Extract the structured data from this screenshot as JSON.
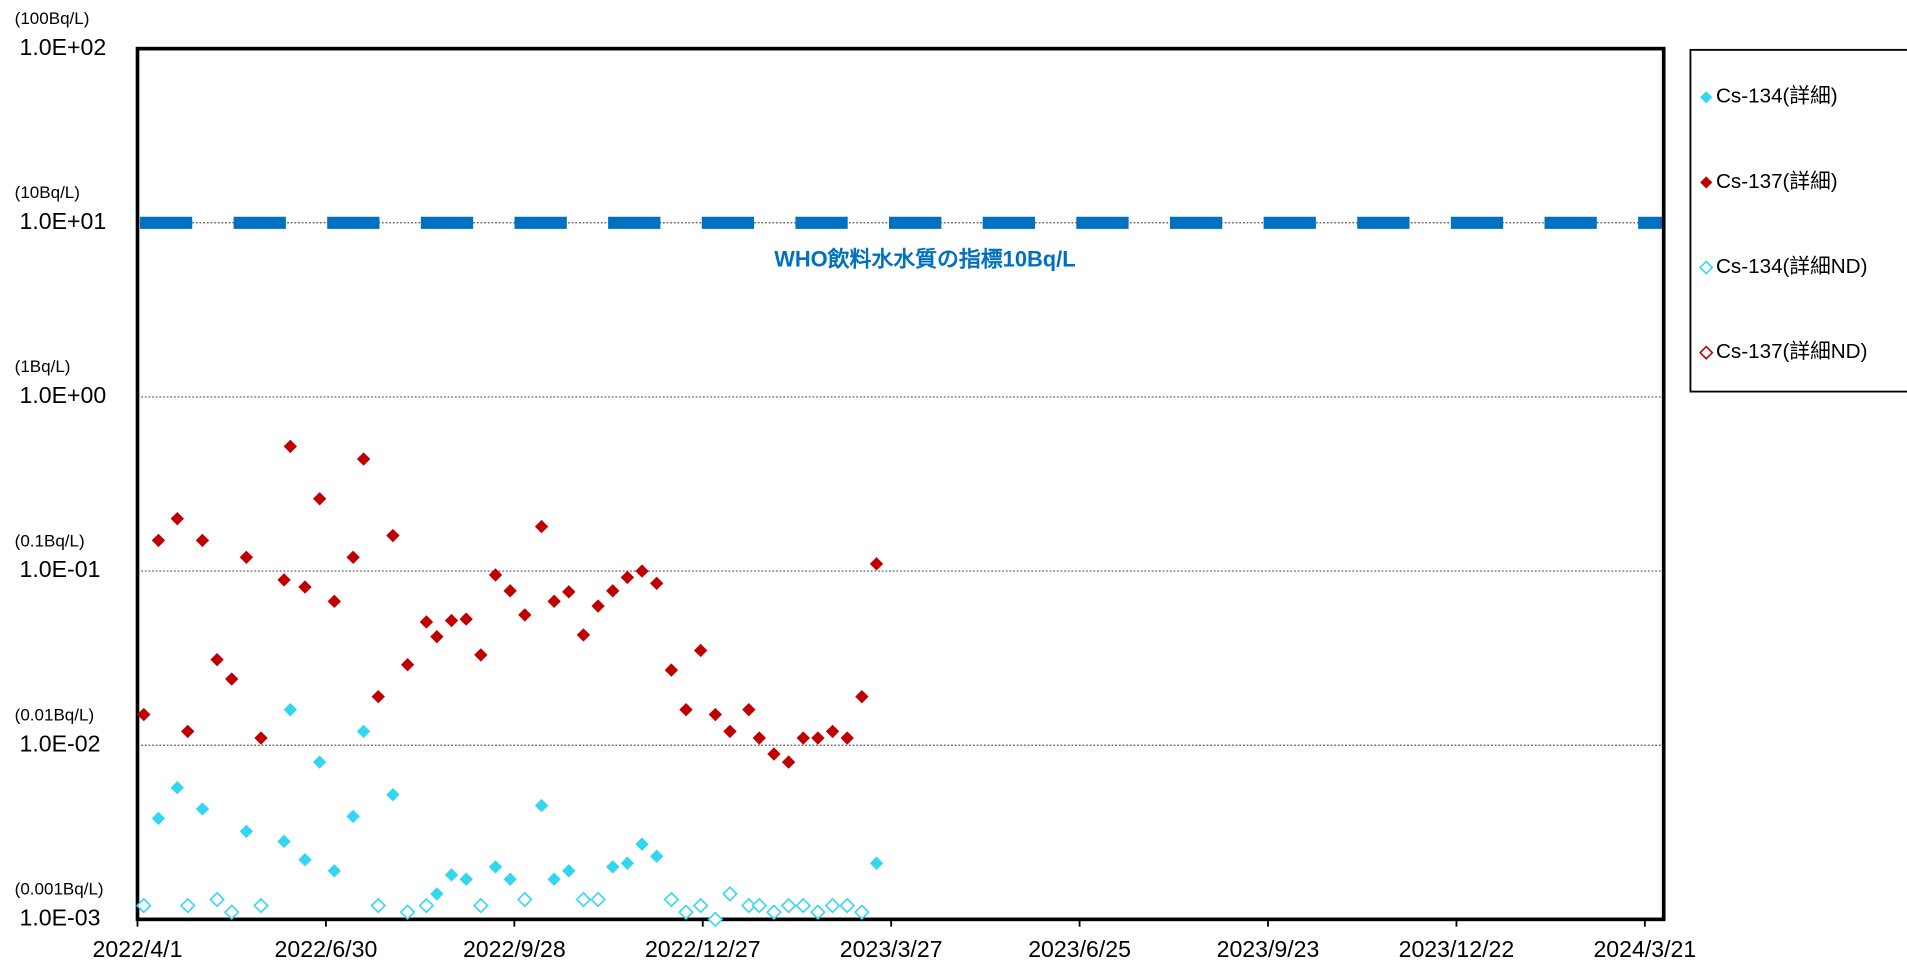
{
  "chart_data": {
    "type": "scatter",
    "ylog": true,
    "grid": true,
    "legend_position": "right",
    "xlim": [
      "2022/4/1",
      "2024/3/30"
    ],
    "xticks": [
      "2022/4/1",
      "2022/6/30",
      "2022/9/28",
      "2022/12/27",
      "2023/3/27",
      "2023/6/25",
      "2023/9/23",
      "2023/12/22",
      "2024/3/21"
    ],
    "ylim": [
      0.001,
      100
    ],
    "yticks": [
      {
        "value": 100,
        "label": "1.0E+02"
      },
      {
        "value": 10,
        "label": "1.0E+01"
      },
      {
        "value": 1,
        "label": "1.0E+00"
      },
      {
        "value": 0.1,
        "label": "1.0E-01"
      },
      {
        "value": 0.01,
        "label": "1.0E-02"
      },
      {
        "value": 0.001,
        "label": "1.0E-03"
      }
    ],
    "ytick_notes": [
      "(100Bq/L)",
      "(10Bq/L)",
      "(1Bq/L)",
      "(0.1Bq/L)",
      "(0.01Bq/L)",
      "(0.001Bq/L)"
    ],
    "reference_line": {
      "value": 10,
      "label": "WHO飲料水水質の指標10Bq/L",
      "color": "#0070c0"
    },
    "series": [
      {
        "name": "Cs-134(詳細)",
        "color": "#33d6f0",
        "filled": true,
        "x": [
          "2022/4/11",
          "2022/4/20",
          "2022/5/2",
          "2022/5/23",
          "2022/6/10",
          "2022/6/13",
          "2022/6/20",
          "2022/6/27",
          "2022/7/4",
          "2022/7/13",
          "2022/7/18",
          "2022/8/1",
          "2022/8/22",
          "2022/8/29",
          "2022/9/5",
          "2022/9/19",
          "2022/9/26",
          "2022/10/11",
          "2022/10/17",
          "2022/10/24",
          "2022/11/14",
          "2022/11/21",
          "2022/11/28",
          "2022/12/5",
          "2023/3/20"
        ],
        "values": [
          0.0038,
          0.0057,
          0.0043,
          0.0032,
          0.0028,
          0.016,
          0.0022,
          0.008,
          0.0019,
          0.0039,
          0.012,
          0.0052,
          0.0014,
          0.0018,
          0.0017,
          0.002,
          0.0017,
          0.0045,
          0.0017,
          0.0019,
          0.002,
          0.0021,
          0.0027,
          0.0023,
          0.0021
        ]
      },
      {
        "name": "Cs-137(詳細)",
        "color": "#c00000",
        "filled": true,
        "x": [
          "2022/4/4",
          "2022/4/11",
          "2022/4/20",
          "2022/4/25",
          "2022/5/2",
          "2022/5/9",
          "2022/5/16",
          "2022/5/23",
          "2022/5/30",
          "2022/6/10",
          "2022/6/13",
          "2022/6/20",
          "2022/6/27",
          "2022/7/4",
          "2022/7/13",
          "2022/7/18",
          "2022/7/25",
          "2022/8/1",
          "2022/8/8",
          "2022/8/17",
          "2022/8/22",
          "2022/8/29",
          "2022/9/5",
          "2022/9/12",
          "2022/9/19",
          "2022/9/26",
          "2022/10/3",
          "2022/10/11",
          "2022/10/17",
          "2022/10/24",
          "2022/10/31",
          "2022/11/7",
          "2022/11/14",
          "2022/11/21",
          "2022/11/28",
          "2022/12/5",
          "2022/12/12",
          "2022/12/19",
          "2022/12/26",
          "2023/1/2",
          "2023/1/9",
          "2023/1/18",
          "2023/1/23",
          "2023/1/30",
          "2023/2/6",
          "2023/2/13",
          "2023/2/20",
          "2023/2/27",
          "2023/3/6",
          "2023/3/13",
          "2023/3/20"
        ],
        "values": [
          0.015,
          0.15,
          0.2,
          0.012,
          0.15,
          0.031,
          0.024,
          0.12,
          0.011,
          0.089,
          0.52,
          0.081,
          0.26,
          0.067,
          0.12,
          0.44,
          0.019,
          0.16,
          0.029,
          0.051,
          0.042,
          0.052,
          0.053,
          0.033,
          0.095,
          0.077,
          0.056,
          0.18,
          0.067,
          0.076,
          0.043,
          0.063,
          0.077,
          0.092,
          0.1,
          0.085,
          0.027,
          0.016,
          0.035,
          0.015,
          0.012,
          0.016,
          0.011,
          0.0089,
          0.008,
          0.011,
          0.011,
          0.012,
          0.011,
          0.019,
          0.11
        ]
      },
      {
        "name": "Cs-134(詳細ND)",
        "color": "#33d6f0",
        "filled": false,
        "x": [
          "2022/4/4",
          "2022/4/25",
          "2022/5/9",
          "2022/5/16",
          "2022/5/30",
          "2022/7/25",
          "2022/8/8",
          "2022/8/17",
          "2022/9/12",
          "2022/10/3",
          "2022/10/31",
          "2022/11/7",
          "2022/12/12",
          "2022/12/19",
          "2022/12/26",
          "2023/1/2",
          "2023/1/9",
          "2023/1/18",
          "2023/1/23",
          "2023/1/30",
          "2023/2/6",
          "2023/2/13",
          "2023/2/20",
          "2023/2/27",
          "2023/3/6",
          "2023/3/13"
        ],
        "values": [
          0.0012,
          0.0012,
          0.0013,
          0.0011,
          0.0012,
          0.0012,
          0.0011,
          0.0012,
          0.0012,
          0.0013,
          0.0013,
          0.0013,
          0.0013,
          0.0011,
          0.0012,
          0.001,
          0.0014,
          0.0012,
          0.0012,
          0.0011,
          0.0012,
          0.0012,
          0.0011,
          0.0012,
          0.0012,
          0.0011
        ]
      },
      {
        "name": "Cs-137(詳細ND)",
        "color": "#c00000",
        "filled": false,
        "x": [],
        "values": []
      }
    ]
  }
}
